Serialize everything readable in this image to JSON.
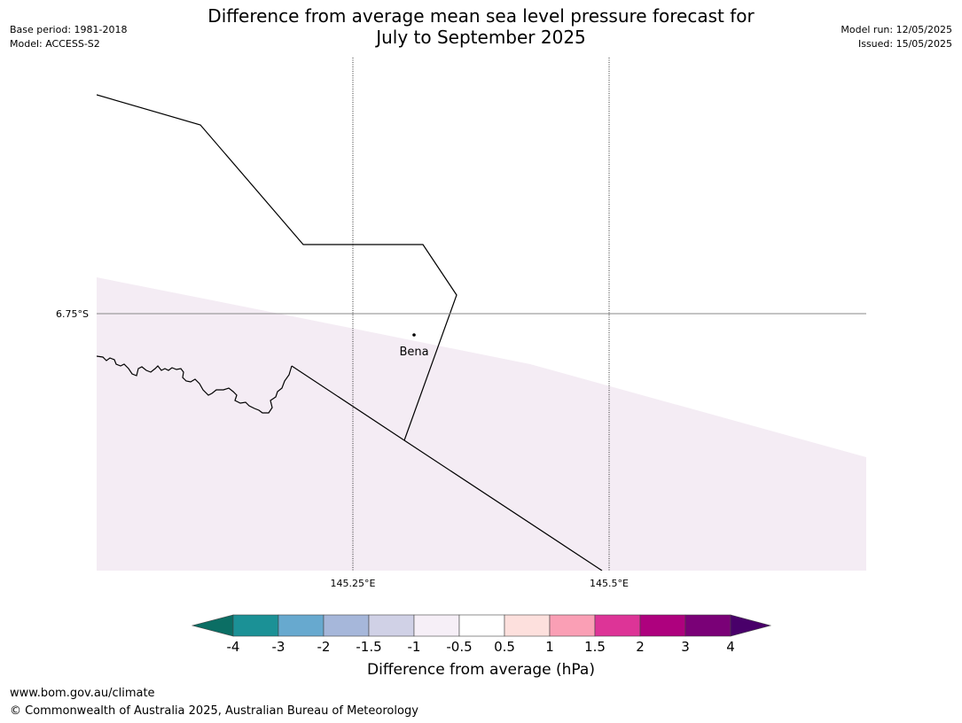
{
  "header": {
    "title_line1": "Difference from average mean sea level pressure forecast for",
    "title_line2": "July to September 2025",
    "base_period": "Base period: 1981-2018",
    "model": "Model: ACCESS-S2",
    "model_run": "Model run: 12/05/2025",
    "issued": "Issued: 15/05/2025"
  },
  "map": {
    "lat_label": "6.75°S",
    "lon_labels": [
      "145.25°E",
      "145.5°E"
    ],
    "place_label": "Bena",
    "shading_category": "-1 to -0.5 hPa",
    "shading_color": "#f4ecf4"
  },
  "colorbar": {
    "title": "Difference from average (hPa)",
    "ticks": [
      "-4",
      "-3",
      "-2",
      "-1.5",
      "-1",
      "-0.5",
      "0.5",
      "1",
      "1.5",
      "2",
      "3",
      "4"
    ],
    "under_color": "#0b6e64",
    "colors": [
      "#1b9196",
      "#67a9cf",
      "#a6b7da",
      "#d0d1e6",
      "#f6eff7",
      "#ffffff",
      "#fde0dd",
      "#fa9fb5",
      "#dd3497",
      "#ae017e",
      "#7a0177"
    ],
    "over_color": "#49006a"
  },
  "footer": {
    "url": "www.bom.gov.au/climate",
    "copyright": "© Commonwealth of Australia 2025, Australian Bureau of Meteorology"
  }
}
